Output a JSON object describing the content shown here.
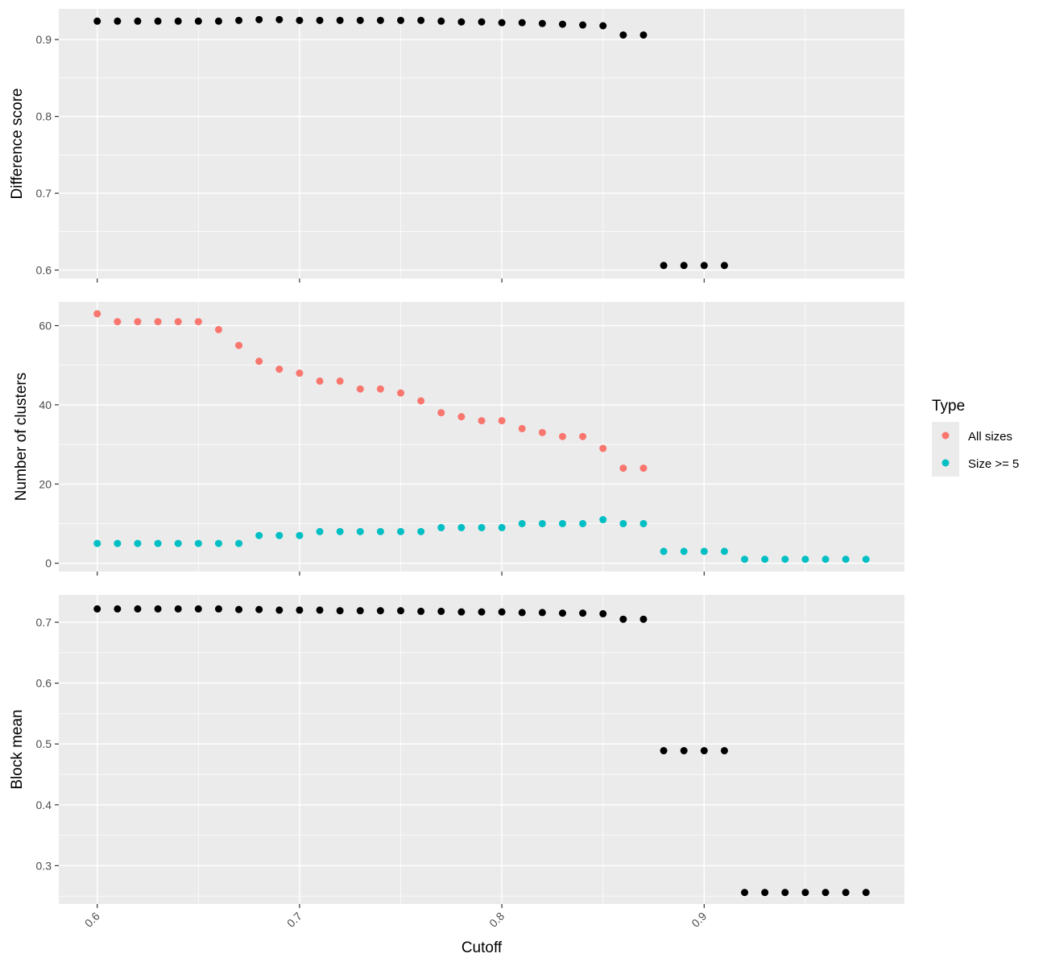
{
  "chart_data": {
    "type": "scatter",
    "layout": "faceted-vertical",
    "shared_x": {
      "label": "Cutoff",
      "ticks": [
        0.6,
        0.7,
        0.8,
        0.9
      ],
      "tick_labels": [
        "0.6",
        "0.7",
        "0.8",
        "0.9"
      ],
      "minor_ticks": [
        0.65,
        0.75,
        0.85,
        0.95
      ],
      "lim": [
        0.581,
        0.999
      ],
      "tick_label_rotation": -45
    },
    "legend": {
      "title": "Type",
      "placement": "right",
      "entries": [
        {
          "name": "All sizes",
          "color": "#F8766D"
        },
        {
          "name": "Size >= 5",
          "color": "#00BFC4"
        }
      ]
    },
    "panels": [
      {
        "id": "difference",
        "ylabel": "Difference score",
        "ylim": [
          0.589,
          0.94
        ],
        "yticks": [
          0.6,
          0.7,
          0.8,
          0.9
        ],
        "ytick_labels": [
          "0.6",
          "0.7",
          "0.8",
          "0.9"
        ],
        "yminor": [
          0.65,
          0.75,
          0.85
        ],
        "show_x_tick_labels": false,
        "series": [
          {
            "color": "#000000",
            "x": [
              0.6,
              0.61,
              0.62,
              0.63,
              0.64,
              0.65,
              0.66,
              0.67,
              0.68,
              0.69,
              0.7,
              0.71,
              0.72,
              0.73,
              0.74,
              0.75,
              0.76,
              0.77,
              0.78,
              0.79,
              0.8,
              0.81,
              0.82,
              0.83,
              0.84,
              0.85,
              0.86,
              0.87,
              0.88,
              0.89,
              0.9,
              0.91
            ],
            "y": [
              0.924,
              0.924,
              0.924,
              0.924,
              0.924,
              0.924,
              0.924,
              0.925,
              0.926,
              0.926,
              0.925,
              0.925,
              0.925,
              0.925,
              0.925,
              0.925,
              0.925,
              0.924,
              0.923,
              0.923,
              0.922,
              0.922,
              0.921,
              0.92,
              0.919,
              0.918,
              0.906,
              0.906,
              0.606,
              0.606,
              0.606,
              0.606
            ]
          }
        ]
      },
      {
        "id": "clusters",
        "ylabel": "Number of clusters",
        "ylim": [
          -2.1,
          66.0
        ],
        "yticks": [
          0,
          20,
          40,
          60
        ],
        "ytick_labels": [
          "0",
          "20",
          "40",
          "60"
        ],
        "yminor": [
          10,
          30,
          50
        ],
        "show_x_tick_labels": false,
        "series": [
          {
            "name": "All sizes",
            "color": "#F8766D",
            "x": [
              0.6,
              0.61,
              0.62,
              0.63,
              0.64,
              0.65,
              0.66,
              0.67,
              0.68,
              0.69,
              0.7,
              0.71,
              0.72,
              0.73,
              0.74,
              0.75,
              0.76,
              0.77,
              0.78,
              0.79,
              0.8,
              0.81,
              0.82,
              0.83,
              0.84,
              0.85,
              0.86,
              0.87
            ],
            "y": [
              63,
              61,
              61,
              61,
              61,
              61,
              59,
              55,
              51,
              49,
              48,
              46,
              46,
              44,
              44,
              43,
              41,
              38,
              37,
              36,
              36,
              34,
              33,
              32,
              32,
              29,
              24,
              24
            ]
          },
          {
            "name": "Size >= 5",
            "color": "#00BFC4",
            "x": [
              0.6,
              0.61,
              0.62,
              0.63,
              0.64,
              0.65,
              0.66,
              0.67,
              0.68,
              0.69,
              0.7,
              0.71,
              0.72,
              0.73,
              0.74,
              0.75,
              0.76,
              0.77,
              0.78,
              0.79,
              0.8,
              0.81,
              0.82,
              0.83,
              0.84,
              0.85,
              0.86,
              0.87,
              0.88,
              0.89,
              0.9,
              0.91,
              0.92,
              0.93,
              0.94,
              0.95,
              0.96,
              0.97,
              0.98
            ],
            "y": [
              5,
              5,
              5,
              5,
              5,
              5,
              5,
              5,
              7,
              7,
              7,
              8,
              8,
              8,
              8,
              8,
              8,
              9,
              9,
              9,
              9,
              10,
              10,
              10,
              10,
              11,
              10,
              10,
              3,
              3,
              3,
              3,
              1,
              1,
              1,
              1,
              1,
              1,
              1
            ]
          }
        ]
      },
      {
        "id": "blockmean",
        "ylabel": "Block mean",
        "ylim": [
          0.237,
          0.745
        ],
        "yticks": [
          0.3,
          0.4,
          0.5,
          0.6,
          0.7
        ],
        "ytick_labels": [
          "0.3",
          "0.4",
          "0.5",
          "0.6",
          "0.7"
        ],
        "yminor": [
          0.25,
          0.35,
          0.45,
          0.55,
          0.65
        ],
        "show_x_tick_labels": true,
        "series": [
          {
            "color": "#000000",
            "x": [
              0.6,
              0.61,
              0.62,
              0.63,
              0.64,
              0.65,
              0.66,
              0.67,
              0.68,
              0.69,
              0.7,
              0.71,
              0.72,
              0.73,
              0.74,
              0.75,
              0.76,
              0.77,
              0.78,
              0.79,
              0.8,
              0.81,
              0.82,
              0.83,
              0.84,
              0.85,
              0.86,
              0.87,
              0.88,
              0.89,
              0.9,
              0.91,
              0.92,
              0.93,
              0.94,
              0.95,
              0.96,
              0.97,
              0.98
            ],
            "y": [
              0.722,
              0.722,
              0.722,
              0.722,
              0.722,
              0.722,
              0.722,
              0.721,
              0.721,
              0.72,
              0.72,
              0.72,
              0.719,
              0.719,
              0.719,
              0.719,
              0.718,
              0.718,
              0.717,
              0.717,
              0.717,
              0.716,
              0.716,
              0.715,
              0.715,
              0.714,
              0.705,
              0.705,
              0.489,
              0.489,
              0.489,
              0.489,
              0.256,
              0.256,
              0.256,
              0.256,
              0.256,
              0.256,
              0.256
            ]
          }
        ]
      }
    ]
  }
}
